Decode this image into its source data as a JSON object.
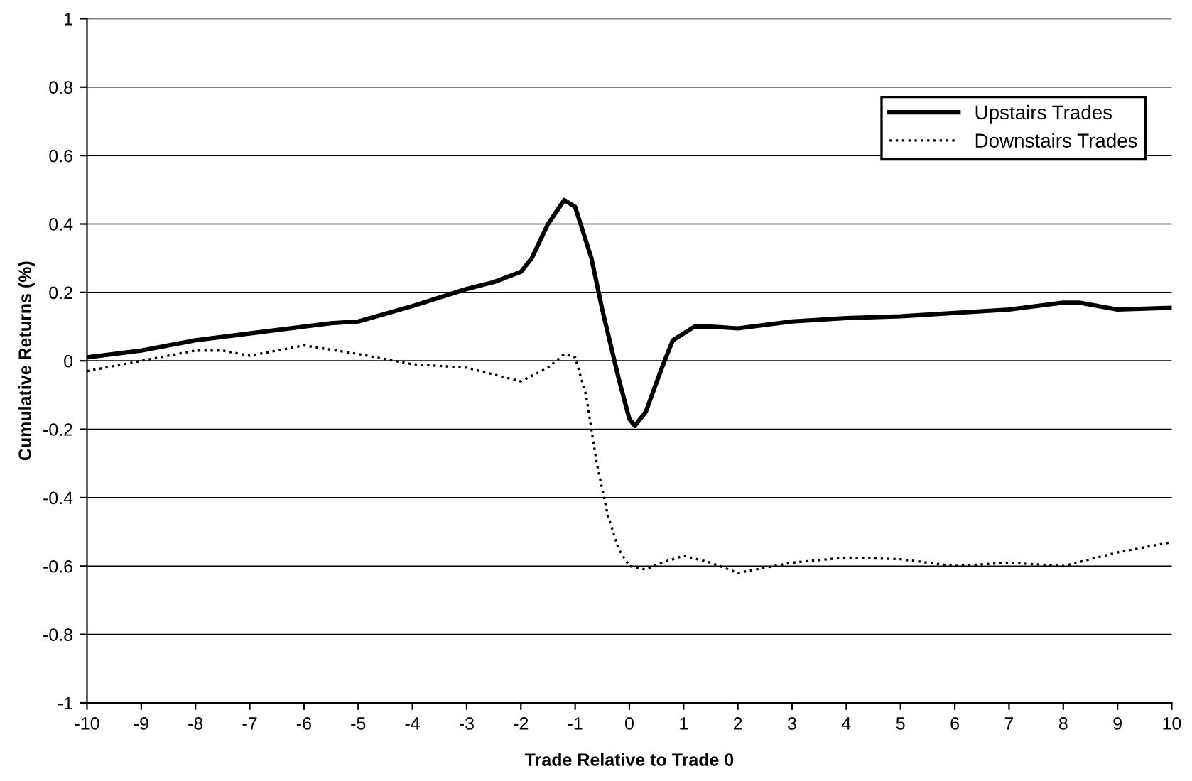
{
  "chart_data": {
    "type": "line",
    "xlabel": "Trade Relative to Trade 0",
    "ylabel": "Cumulative Returns (%)",
    "xlim": [
      -10,
      10
    ],
    "xticks": [
      -10,
      -9,
      -8,
      -7,
      -6,
      -5,
      -4,
      -3,
      -2,
      -1,
      0,
      1,
      2,
      3,
      4,
      5,
      6,
      7,
      8,
      9,
      10
    ],
    "ylim": [
      -1,
      1
    ],
    "yticks": [
      -1,
      -0.8,
      -0.6,
      -0.4,
      -0.2,
      0,
      0.2,
      0.4,
      0.6,
      0.8,
      1
    ],
    "grid": "y",
    "legend": "top right",
    "marker": "none",
    "series": [
      {
        "name": "Upstairs Trades",
        "color": "#000000",
        "line_style": "solid",
        "x": [
          -10,
          -9,
          -8,
          -7,
          -6,
          -5.5,
          -5,
          -4,
          -3,
          -2.5,
          -2,
          -1.8,
          -1.5,
          -1.2,
          -1,
          -0.7,
          -0.5,
          -0.2,
          0,
          0.1,
          0.3,
          0.6,
          0.8,
          1.2,
          1.5,
          2,
          3,
          4,
          5,
          6,
          7,
          8,
          8.3,
          9,
          10
        ],
        "values": [
          0.01,
          0.03,
          0.06,
          0.08,
          0.1,
          0.11,
          0.115,
          0.16,
          0.21,
          0.23,
          0.26,
          0.3,
          0.4,
          0.47,
          0.45,
          0.3,
          0.15,
          -0.05,
          -0.17,
          -0.19,
          -0.15,
          -0.02,
          0.06,
          0.1,
          0.1,
          0.095,
          0.115,
          0.125,
          0.13,
          0.14,
          0.15,
          0.17,
          0.17,
          0.15,
          0.155
        ]
      },
      {
        "name": "Downstairs Trades",
        "color": "#000000",
        "line_style": "dotted",
        "x": [
          -10,
          -9,
          -8,
          -7.5,
          -7,
          -6,
          -5,
          -4,
          -3,
          -2.5,
          -2,
          -1.5,
          -1.2,
          -1,
          -0.8,
          -0.6,
          -0.4,
          -0.2,
          0,
          0.3,
          0.6,
          1,
          1.5,
          2,
          3,
          4,
          5,
          6,
          7,
          8,
          9,
          10
        ],
        "values": [
          -0.03,
          0,
          0.03,
          0.03,
          0.015,
          0.045,
          0.02,
          -0.01,
          -0.02,
          -0.04,
          -0.06,
          -0.02,
          0.02,
          0.01,
          -0.1,
          -0.3,
          -0.45,
          -0.55,
          -0.6,
          -0.61,
          -0.59,
          -0.57,
          -0.59,
          -0.62,
          -0.59,
          -0.575,
          -0.58,
          -0.6,
          -0.59,
          -0.6,
          -0.56,
          -0.53
        ]
      }
    ]
  }
}
